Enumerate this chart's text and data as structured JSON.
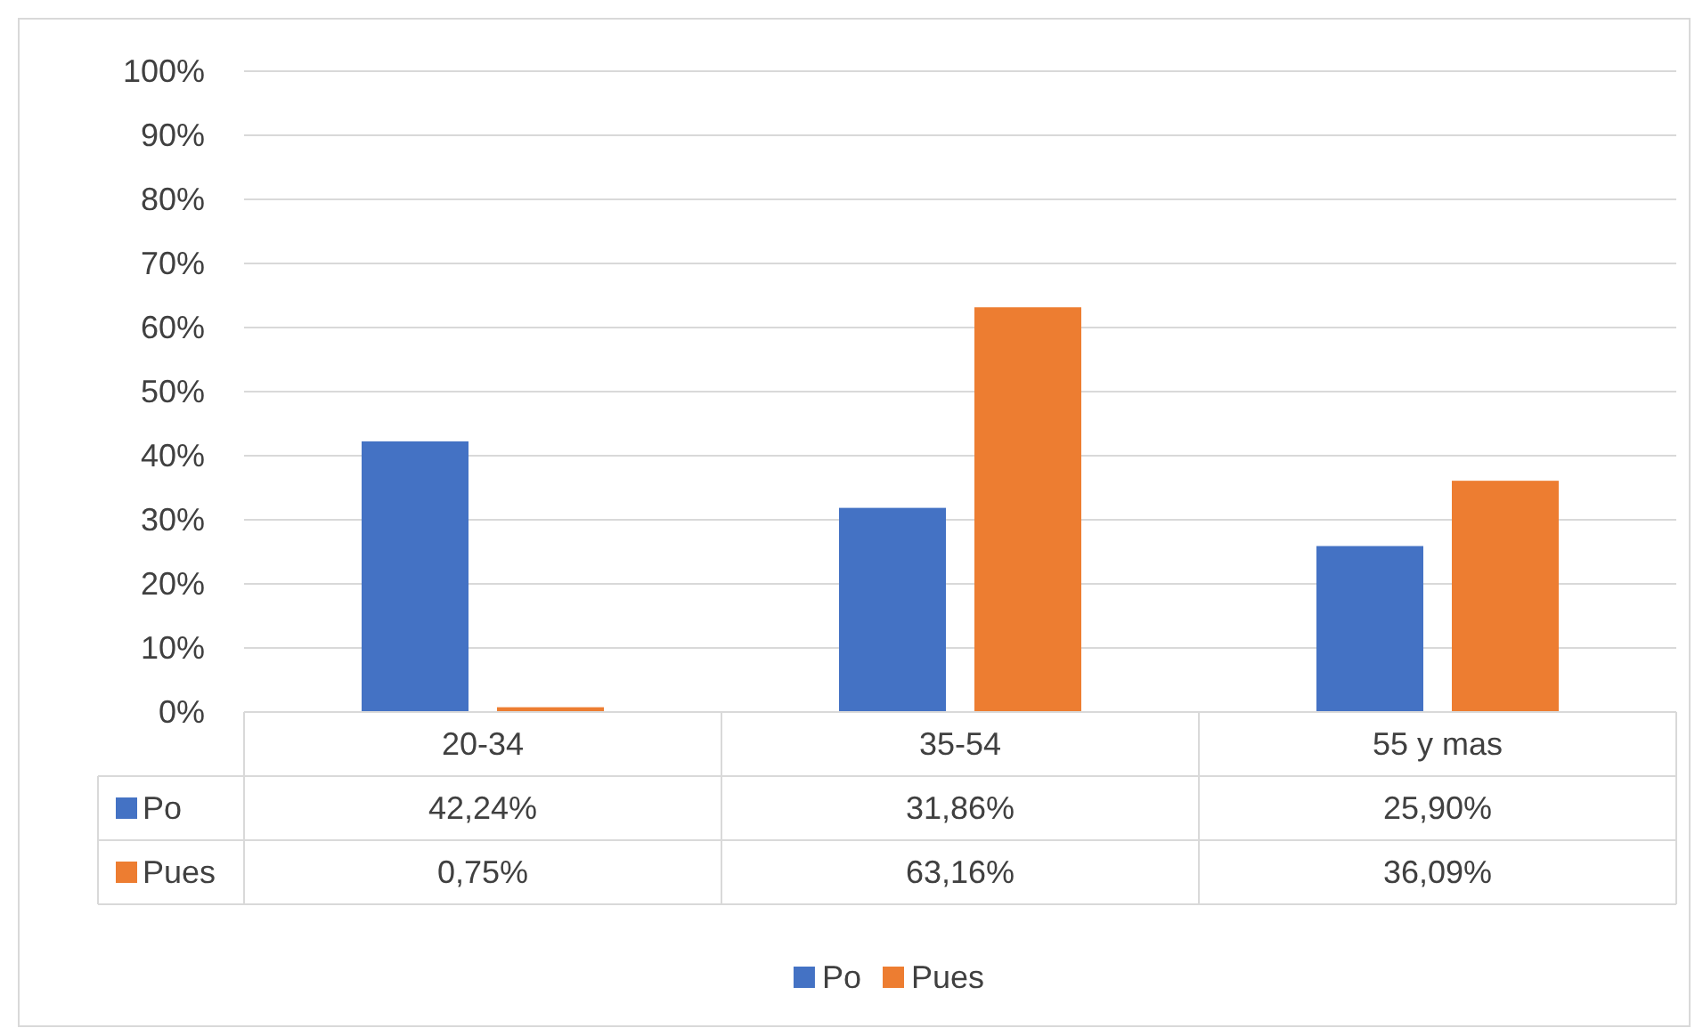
{
  "chart_data": {
    "type": "bar",
    "categories": [
      "20-34",
      "35-54",
      "55 y mas"
    ],
    "series": [
      {
        "name": "Po",
        "color": "#4472c4",
        "values": [
          42.24,
          31.86,
          25.9
        ],
        "value_labels": [
          "42,24%",
          "31,86%",
          "25,90%"
        ]
      },
      {
        "name": "Pues",
        "color": "#ed7d31",
        "values": [
          0.75,
          63.16,
          36.09
        ],
        "value_labels": [
          "0,75%",
          "63,16%",
          "36,09%"
        ]
      }
    ],
    "ylim": [
      0,
      100
    ],
    "yticks": [
      {
        "value": 0,
        "label": "0%"
      },
      {
        "value": 10,
        "label": "10%"
      },
      {
        "value": 20,
        "label": "20%"
      },
      {
        "value": 30,
        "label": "30%"
      },
      {
        "value": 40,
        "label": "40%"
      },
      {
        "value": 50,
        "label": "50%"
      },
      {
        "value": 60,
        "label": "60%"
      },
      {
        "value": 70,
        "label": "70%"
      },
      {
        "value": 80,
        "label": "80%"
      },
      {
        "value": 90,
        "label": "90%"
      },
      {
        "value": 100,
        "label": "100%"
      }
    ],
    "grid": "y",
    "legend": "bottom"
  }
}
